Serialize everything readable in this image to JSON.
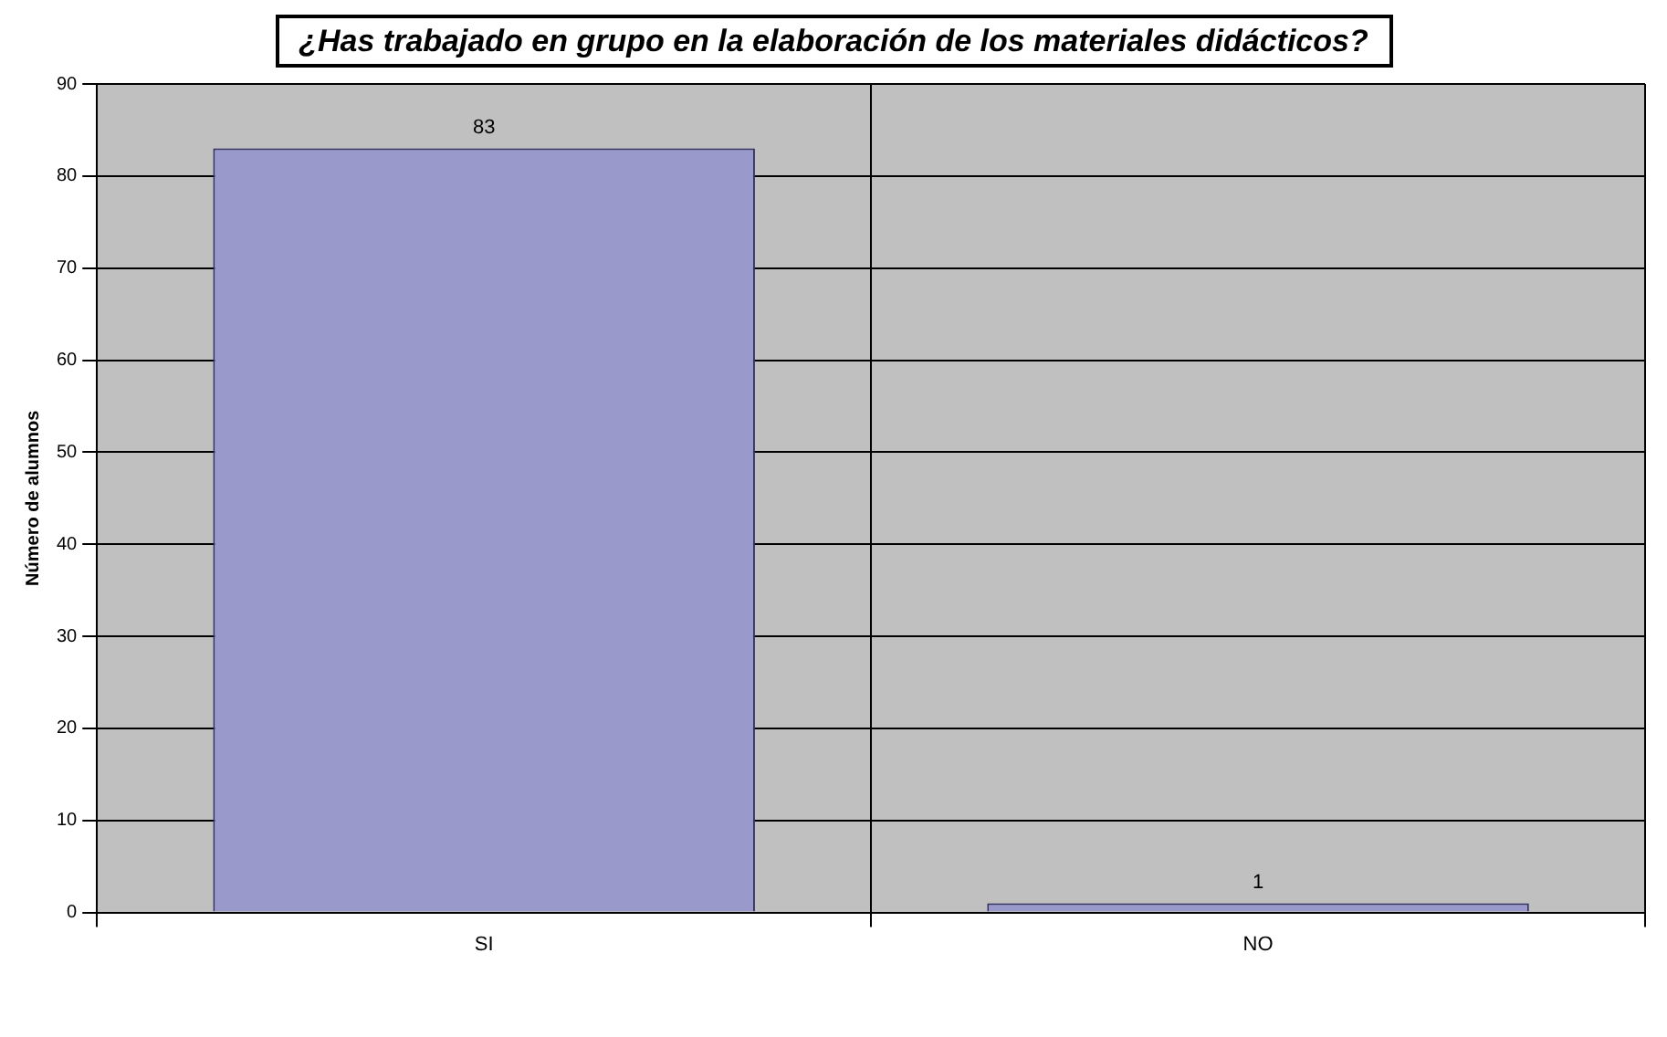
{
  "chart_data": {
    "type": "bar",
    "title": "¿Has trabajado en grupo en la elaboración de los materiales didácticos?",
    "ylabel": "Número de alumnos",
    "categories": [
      "SI",
      "NO"
    ],
    "values": [
      83,
      1
    ],
    "color": "#9999cc",
    "ylim": [
      0,
      90
    ],
    "yticks": [
      0,
      10,
      20,
      30,
      40,
      50,
      60,
      70,
      80,
      90
    ],
    "grid": true,
    "data_labels": true
  }
}
